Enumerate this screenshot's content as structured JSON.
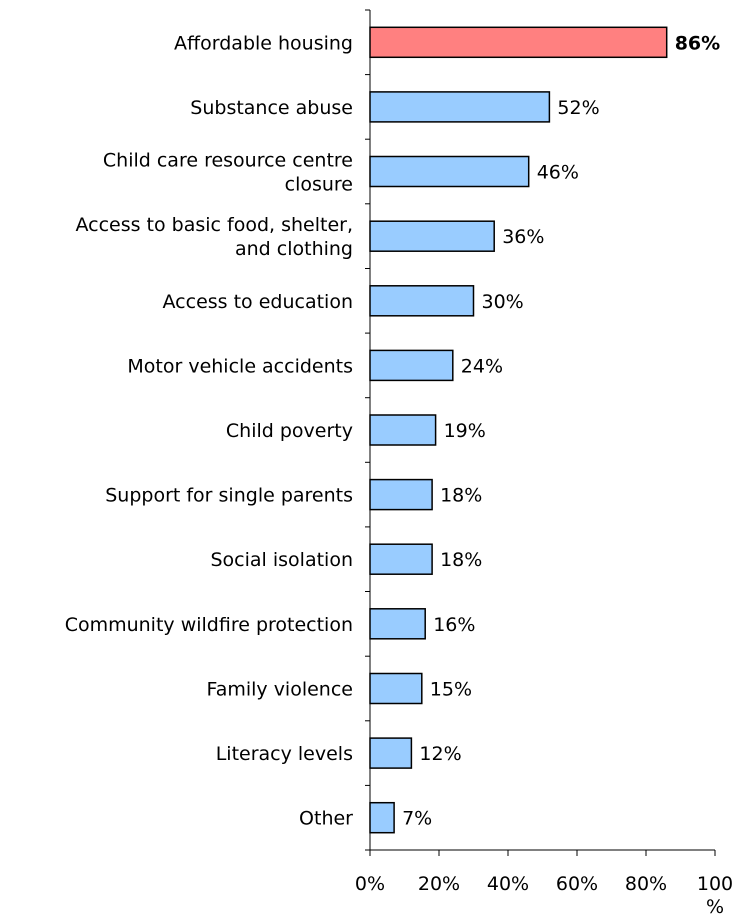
{
  "chart_data": {
    "type": "bar",
    "orientation": "horizontal",
    "categories": [
      [
        "Affordable housing"
      ],
      [
        "Substance abuse"
      ],
      [
        "Child care resource centre",
        "closure"
      ],
      [
        "Access to basic food, shelter,",
        "and clothing"
      ],
      [
        "Access to education"
      ],
      [
        "Motor vehicle accidents"
      ],
      [
        "Child poverty"
      ],
      [
        "Support for single parents"
      ],
      [
        "Social isolation"
      ],
      [
        "Community wildfire protection"
      ],
      [
        "Family violence"
      ],
      [
        "Literacy levels"
      ],
      [
        "Other"
      ]
    ],
    "values": [
      86,
      52,
      46,
      36,
      30,
      24,
      19,
      18,
      18,
      16,
      15,
      12,
      7
    ],
    "value_labels": [
      "86%",
      "52%",
      "46%",
      "36%",
      "30%",
      "24%",
      "19%",
      "18%",
      "18%",
      "16%",
      "15%",
      "12%",
      "7%"
    ],
    "highlight_index": 0,
    "xlim": [
      0,
      100
    ],
    "x_ticks": [
      0,
      20,
      40,
      60,
      80,
      100
    ],
    "x_tick_labels": [
      "0%",
      "20%",
      "40%",
      "60%",
      "80%",
      "100"
    ],
    "x_unit_label": "%",
    "colors": {
      "default_bar": "#99ccff",
      "highlight_bar": "#ff8080",
      "bar_outline": "#000000",
      "axis": "#000000",
      "text": "#000000"
    },
    "grid": false,
    "legend": "none",
    "title": "",
    "xlabel": "",
    "ylabel": ""
  }
}
